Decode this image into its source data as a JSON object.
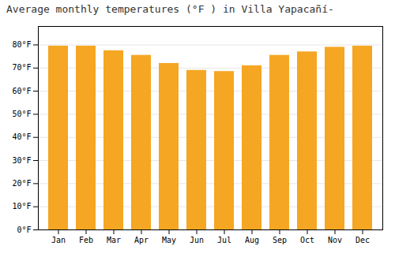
{
  "chart_data": {
    "type": "bar",
    "title": "Average monthly temperatures (°F ) in Villa Yapacañí-",
    "categories": [
      "Jan",
      "Feb",
      "Mar",
      "Apr",
      "May",
      "Jun",
      "Jul",
      "Aug",
      "Sep",
      "Oct",
      "Nov",
      "Dec"
    ],
    "values": [
      79.5,
      79.5,
      77.5,
      75.5,
      72.0,
      69.0,
      68.5,
      71.0,
      75.5,
      77.0,
      79.0,
      79.5
    ],
    "color": "#F5A623",
    "ylim": [
      0,
      88
    ],
    "yticks": [
      {
        "value": 0,
        "label": "0°F"
      },
      {
        "value": 10,
        "label": "10°F"
      },
      {
        "value": 20,
        "label": "20°F"
      },
      {
        "value": 30,
        "label": "30°F"
      },
      {
        "value": 40,
        "label": "40°F"
      },
      {
        "value": 50,
        "label": "50°F"
      },
      {
        "value": 60,
        "label": "60°F"
      },
      {
        "value": 70,
        "label": "70°F"
      },
      {
        "value": 80,
        "label": "80°F"
      }
    ],
    "grid": true
  }
}
